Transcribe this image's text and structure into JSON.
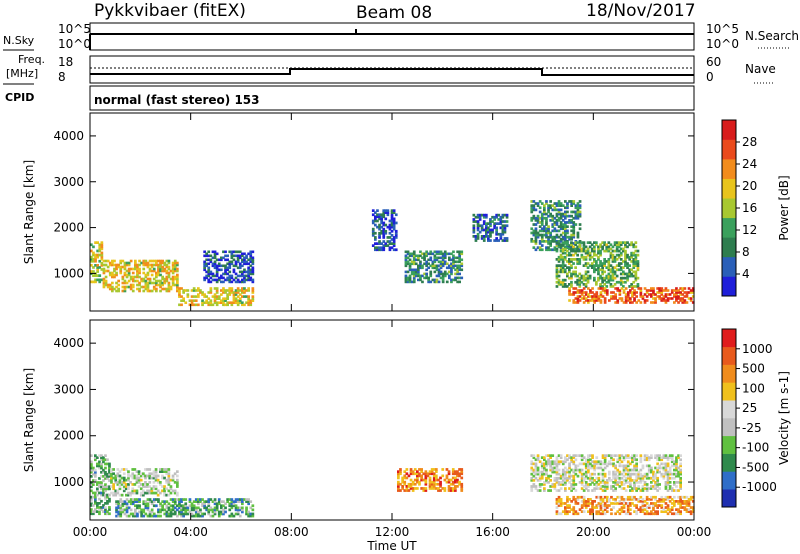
{
  "header": {
    "station": "Pykkvibaer (fitEX)",
    "beam": "Beam 08",
    "date": "18/Nov/2017"
  },
  "side_labels": {
    "nsky": "N.Sky",
    "nsky_ticks": [
      "10^5",
      "10^0"
    ],
    "nsearch": "N.Search",
    "nsearch_ticks": [
      "10^5",
      "10^0"
    ],
    "freq_line1": "Freq.",
    "freq_line2": "[MHz]",
    "freq_ticks": [
      "18",
      "8"
    ],
    "nave": "Nave",
    "nave_ticks": [
      "60",
      "0"
    ],
    "cpid": "CPID",
    "cpid_text": "normal (fast stereo) 153"
  },
  "colors": {
    "power_scale": [
      "#1f1fd9",
      "#2a5fb8",
      "#2e7d4f",
      "#3aa05c",
      "#a8c830",
      "#e8c41c",
      "#f28c1c",
      "#ea4a1c",
      "#d81c1c"
    ],
    "velocity_scale": [
      "#1f2fb0",
      "#2f6ec8",
      "#2f8a4c",
      "#60c040",
      "#c0c0c0",
      "#d8d8d8",
      "#f0c01c",
      "#f08c1c",
      "#e85a1c",
      "#e01c1c"
    ]
  },
  "chart_data": [
    {
      "type": "line",
      "panel": "N.Sky / N.Search",
      "x_range": [
        "00:00",
        "24:00"
      ],
      "series": [
        {
          "name": "N.Sky",
          "points": [
            [
              0,
              5.0
            ],
            [
              10.8,
              5.0
            ],
            [
              10.8,
              5.2
            ],
            [
              10.9,
              5.0
            ],
            [
              24,
              5.0
            ]
          ]
        }
      ]
    },
    {
      "type": "line",
      "panel": "Freq / Nave",
      "x_range": [
        "00:00",
        "24:00"
      ],
      "y_ticks": [
        "18",
        "8"
      ],
      "series": [
        {
          "name": "Freq",
          "points": [
            [
              0,
              10.5
            ],
            [
              8.0,
              10.5
            ],
            [
              8.0,
              12.5
            ],
            [
              18.0,
              12.5
            ],
            [
              18.0,
              10.5
            ],
            [
              24,
              10.5
            ]
          ]
        },
        {
          "name": "Nave",
          "points": [
            [
              0,
              32
            ],
            [
              24,
              32
            ]
          ]
        }
      ]
    },
    {
      "type": "heatmap",
      "panel": "Power",
      "ylabel": "Slant Range [km]",
      "ylim": [
        180,
        4500
      ],
      "yticks": [
        "1000",
        "2000",
        "3000",
        "4000"
      ],
      "colorbar_label": "Power [dB]",
      "colorbar_ticks": [
        "28",
        "24",
        "20",
        "16",
        "12",
        "8",
        "4"
      ],
      "clusters": [
        {
          "t0": 0.0,
          "t1": 0.5,
          "r0": 800,
          "r1": 1700,
          "level": 0.55
        },
        {
          "t0": 0.5,
          "t1": 3.5,
          "r0": 600,
          "r1": 1300,
          "level": 0.6
        },
        {
          "t0": 3.5,
          "t1": 6.5,
          "r0": 300,
          "r1": 700,
          "level": 0.6
        },
        {
          "t0": 4.5,
          "t1": 6.5,
          "r0": 800,
          "r1": 1500,
          "level": 0.15
        },
        {
          "t0": 11.2,
          "t1": 12.2,
          "r0": 1500,
          "r1": 2400,
          "level": 0.15
        },
        {
          "t0": 12.5,
          "t1": 14.8,
          "r0": 800,
          "r1": 1500,
          "level": 0.3
        },
        {
          "t0": 15.2,
          "t1": 16.6,
          "r0": 1700,
          "r1": 2300,
          "level": 0.2
        },
        {
          "t0": 17.5,
          "t1": 19.5,
          "r0": 1500,
          "r1": 2600,
          "level": 0.3
        },
        {
          "t0": 18.5,
          "t1": 21.8,
          "r0": 700,
          "r1": 1700,
          "level": 0.4
        },
        {
          "t0": 19.0,
          "t1": 24.0,
          "r0": 350,
          "r1": 700,
          "level": 0.8
        }
      ]
    },
    {
      "type": "heatmap",
      "panel": "Velocity",
      "ylabel": "Slant Range [km]",
      "xlabel": "Time UT",
      "ylim": [
        180,
        4500
      ],
      "yticks": [
        "1000",
        "2000",
        "3000",
        "4000"
      ],
      "xticks": [
        "00:00",
        "04:00",
        "08:00",
        "12:00",
        "16:00",
        "20:00",
        "00:00"
      ],
      "colorbar_label": "Velocity [m s-1]",
      "colorbar_ticks": [
        "1000",
        "500",
        "100",
        "25",
        "-25",
        "-100",
        "-500",
        "-1000"
      ],
      "clusters": [
        {
          "t0": 0.0,
          "t1": 0.8,
          "r0": 300,
          "r1": 1600,
          "level": 0.35
        },
        {
          "t0": 0.8,
          "t1": 3.5,
          "r0": 700,
          "r1": 1300,
          "level": 0.45
        },
        {
          "t0": 1.0,
          "t1": 6.5,
          "r0": 250,
          "r1": 650,
          "level": 0.3
        },
        {
          "t0": 12.2,
          "t1": 14.8,
          "r0": 800,
          "r1": 1300,
          "level": 0.78
        },
        {
          "t0": 17.5,
          "t1": 23.5,
          "r0": 800,
          "r1": 1600,
          "level": 0.5
        },
        {
          "t0": 18.5,
          "t1": 24.0,
          "r0": 300,
          "r1": 700,
          "level": 0.72
        }
      ]
    }
  ]
}
